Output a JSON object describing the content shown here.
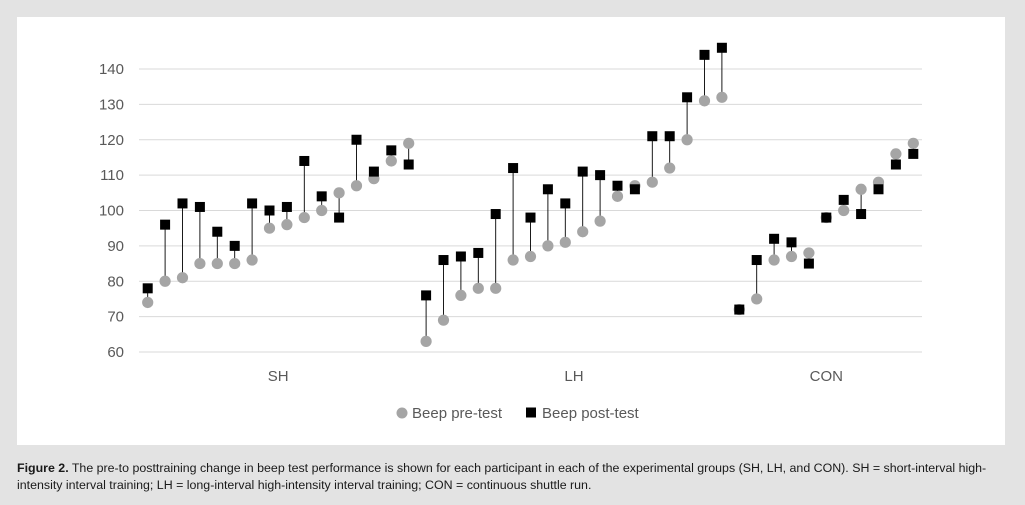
{
  "chart_data": {
    "type": "scatter",
    "title": "",
    "xlabel": "",
    "ylabel": "",
    "ylim": [
      60,
      145
    ],
    "yticks": [
      60,
      70,
      80,
      90,
      100,
      110,
      120,
      130,
      140
    ],
    "grid": "horizontal",
    "legend_placement": "bottom-center",
    "colors": {
      "pre": "#a5a5a5",
      "post": "#000000",
      "connector": "#000000",
      "grid": "#d9d9d9"
    },
    "series": [
      {
        "name": "Beep pre-test",
        "marker": "circle"
      },
      {
        "name": "Beep post-test",
        "marker": "square"
      }
    ],
    "groups": [
      {
        "label": "SH",
        "pre": [
          74,
          80,
          81,
          85,
          85,
          85,
          86,
          95,
          96,
          98,
          100,
          105,
          107,
          109,
          114,
          119
        ],
        "post": [
          78,
          96,
          102,
          101,
          94,
          90,
          102,
          100,
          101,
          114,
          104,
          98,
          120,
          111,
          117,
          113
        ]
      },
      {
        "label": "LH",
        "pre": [
          63,
          69,
          76,
          78,
          78,
          86,
          87,
          90,
          91,
          94,
          97,
          104,
          107,
          108,
          112,
          120,
          131,
          132
        ],
        "post": [
          76,
          86,
          87,
          88,
          99,
          112,
          98,
          106,
          102,
          111,
          110,
          107,
          106,
          121,
          121,
          132,
          144,
          146
        ]
      },
      {
        "label": "CON",
        "pre": [
          72,
          75,
          86,
          87,
          88,
          98,
          100,
          106,
          108,
          116,
          119
        ],
        "post": [
          72,
          86,
          92,
          91,
          85,
          98,
          103,
          99,
          106,
          113,
          116
        ]
      }
    ]
  },
  "caption": {
    "lead": "Figure 2.",
    "text": "The pre-to posttraining change in beep test performance is shown for each participant in each of the experimental groups (SH, LH, and CON). SH = short-interval high-intensity interval training; LH = long-interval high-intensity interval training; CON = continuous shuttle run."
  }
}
